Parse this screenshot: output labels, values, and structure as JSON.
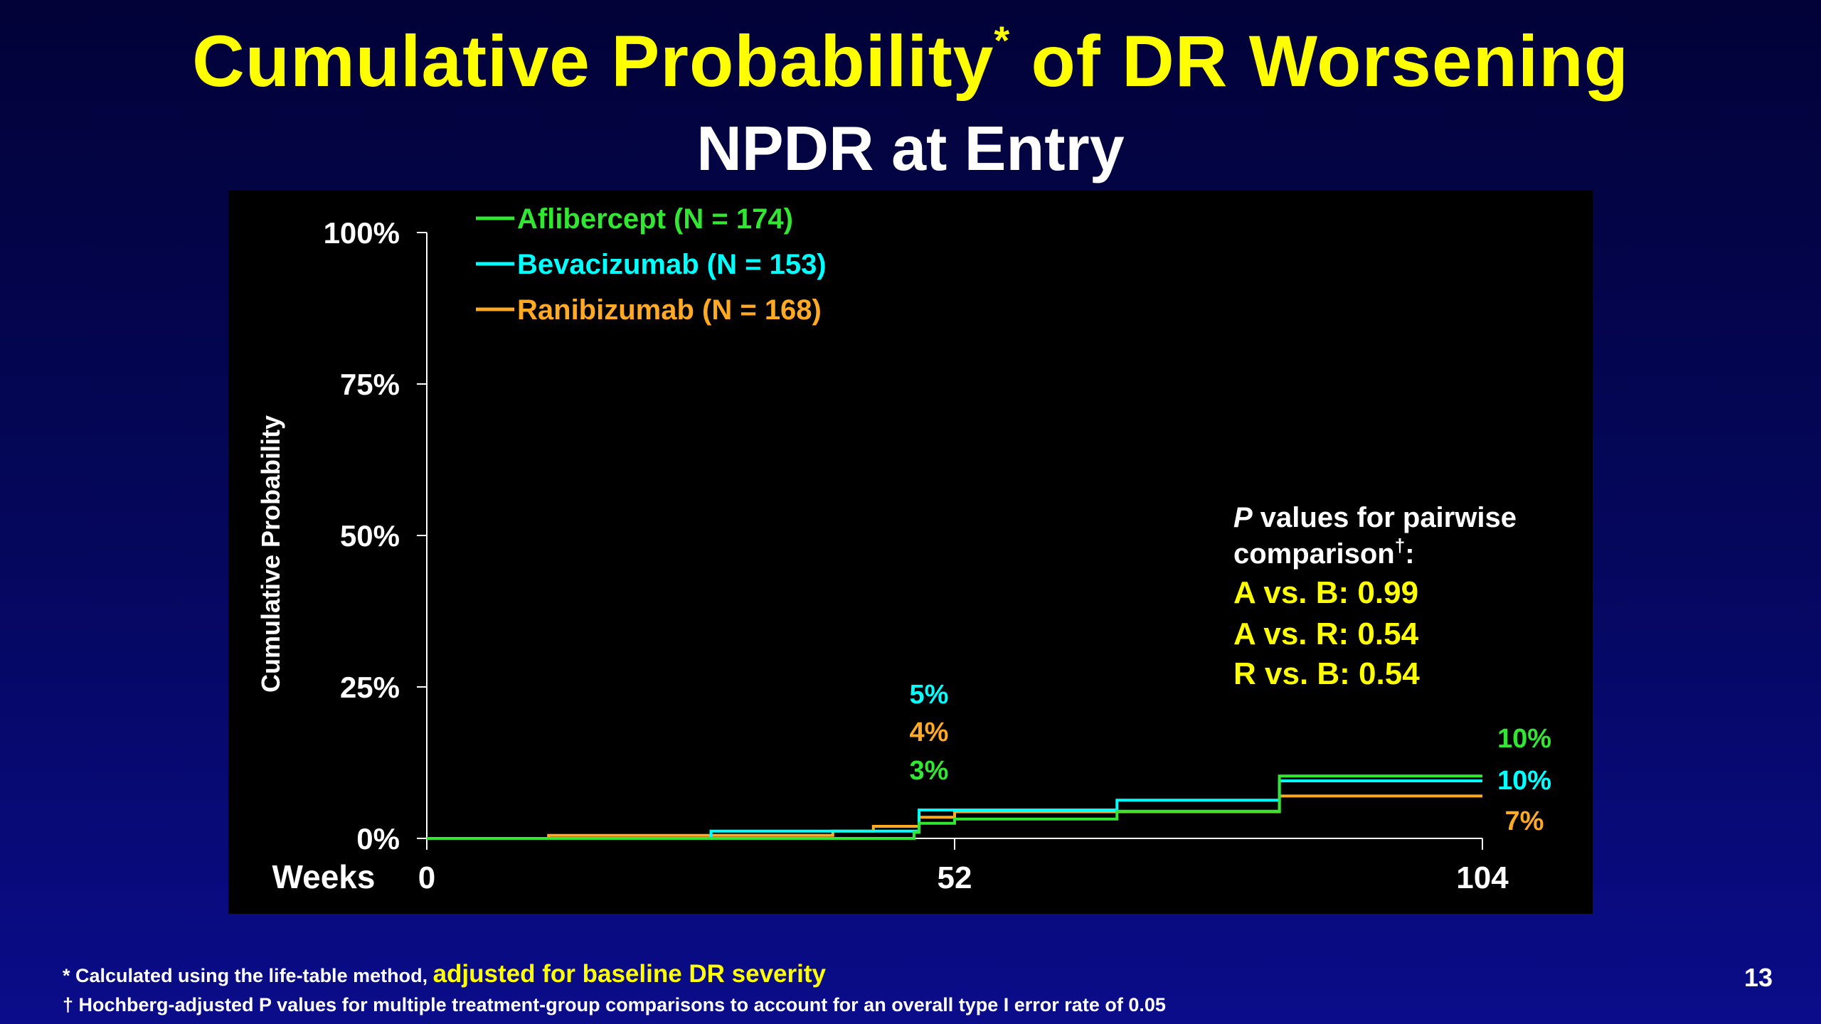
{
  "slide": {
    "title": "Cumulative Probability",
    "title_sup": "*",
    "title_suffix": " of DR Worsening",
    "subtitle": "NPDR at Entry",
    "slide_number": "13"
  },
  "footnotes": {
    "fn1_mark": "*",
    "fn1_text": " Calculated using the life-table method, ",
    "fn1_highlight": "adjusted for baseline DR severity",
    "fn2_mark": "†",
    "fn2_text": " Hochberg-adjusted P values for multiple treatment-group comparisons to account for an overall type I error rate of 0.05"
  },
  "colors": {
    "aflibercept": "#33e633",
    "bevacizumab": "#00ffff",
    "ranibizumab": "#ffaa22",
    "title": "#ffff00",
    "pvalue_text": "#ffff00"
  },
  "chart_data": {
    "type": "line",
    "step": true,
    "ylabel": "Cumulative Probability",
    "xlabel": "Weeks",
    "xlim": [
      0,
      104
    ],
    "ylim": [
      0,
      100
    ],
    "x_ticks": [
      0,
      52,
      104
    ],
    "x_tick_labels": [
      "0",
      "52",
      "104"
    ],
    "y_ticks": [
      0,
      25,
      50,
      75,
      100
    ],
    "y_tick_labels": [
      "0%",
      "25%",
      "50%",
      "75%",
      "100%"
    ],
    "legend": {
      "placement": "top-left",
      "entries": [
        "Aflibercept (N = 174)",
        "Bevacizumab (N = 153)",
        "Ranibizumab (N = 168)"
      ]
    },
    "series": [
      {
        "name": "Aflibercept (N = 174)",
        "color": "#33e633",
        "points": [
          [
            0,
            0
          ],
          [
            48,
            0
          ],
          [
            48,
            1
          ],
          [
            48.5,
            1
          ],
          [
            48.5,
            2.5
          ],
          [
            52,
            2.5
          ],
          [
            52,
            3.2
          ],
          [
            68,
            3.2
          ],
          [
            68,
            4.5
          ],
          [
            84,
            4.5
          ],
          [
            84,
            10.3
          ],
          [
            104,
            10.3
          ]
        ]
      },
      {
        "name": "Bevacizumab (N = 153)",
        "color": "#00ffff",
        "points": [
          [
            0,
            0
          ],
          [
            28,
            0
          ],
          [
            28,
            1.2
          ],
          [
            48.5,
            1.2
          ],
          [
            48.5,
            4.7
          ],
          [
            68,
            4.7
          ],
          [
            68,
            6.3
          ],
          [
            84,
            6.3
          ],
          [
            84,
            9.5
          ],
          [
            104,
            9.5
          ]
        ]
      },
      {
        "name": "Ranibizumab (N = 168)",
        "color": "#ffaa22",
        "points": [
          [
            0,
            0
          ],
          [
            12,
            0
          ],
          [
            12,
            0.5
          ],
          [
            40,
            0.5
          ],
          [
            40,
            1.2
          ],
          [
            44,
            1.2
          ],
          [
            44,
            2
          ],
          [
            48.5,
            2
          ],
          [
            48.5,
            3.5
          ],
          [
            52,
            3.5
          ],
          [
            52,
            4.4
          ],
          [
            84,
            4.4
          ],
          [
            84,
            7
          ],
          [
            104,
            7
          ]
        ]
      }
    ],
    "annotations_52": [
      {
        "text": "5%",
        "series": "Bevacizumab (N = 153)"
      },
      {
        "text": "4%",
        "series": "Ranibizumab (N = 168)"
      },
      {
        "text": "3%",
        "series": "Aflibercept (N = 174)"
      }
    ],
    "annotations_104": [
      {
        "text": "10%",
        "series": "Aflibercept (N = 174)"
      },
      {
        "text": "10%",
        "series": "Bevacizumab (N = 153)"
      },
      {
        "text": "7%",
        "series": "Ranibizumab (N = 168)"
      }
    ],
    "pvalues": {
      "heading_p": "P",
      "heading_rest": " values for pairwise",
      "heading_line2": "comparison",
      "heading_line2_sup": "†",
      "heading_line2_end": ":",
      "comparisons": [
        "A vs. B: 0.99",
        "A vs. R: 0.54",
        "R vs. B: 0.54"
      ]
    }
  }
}
